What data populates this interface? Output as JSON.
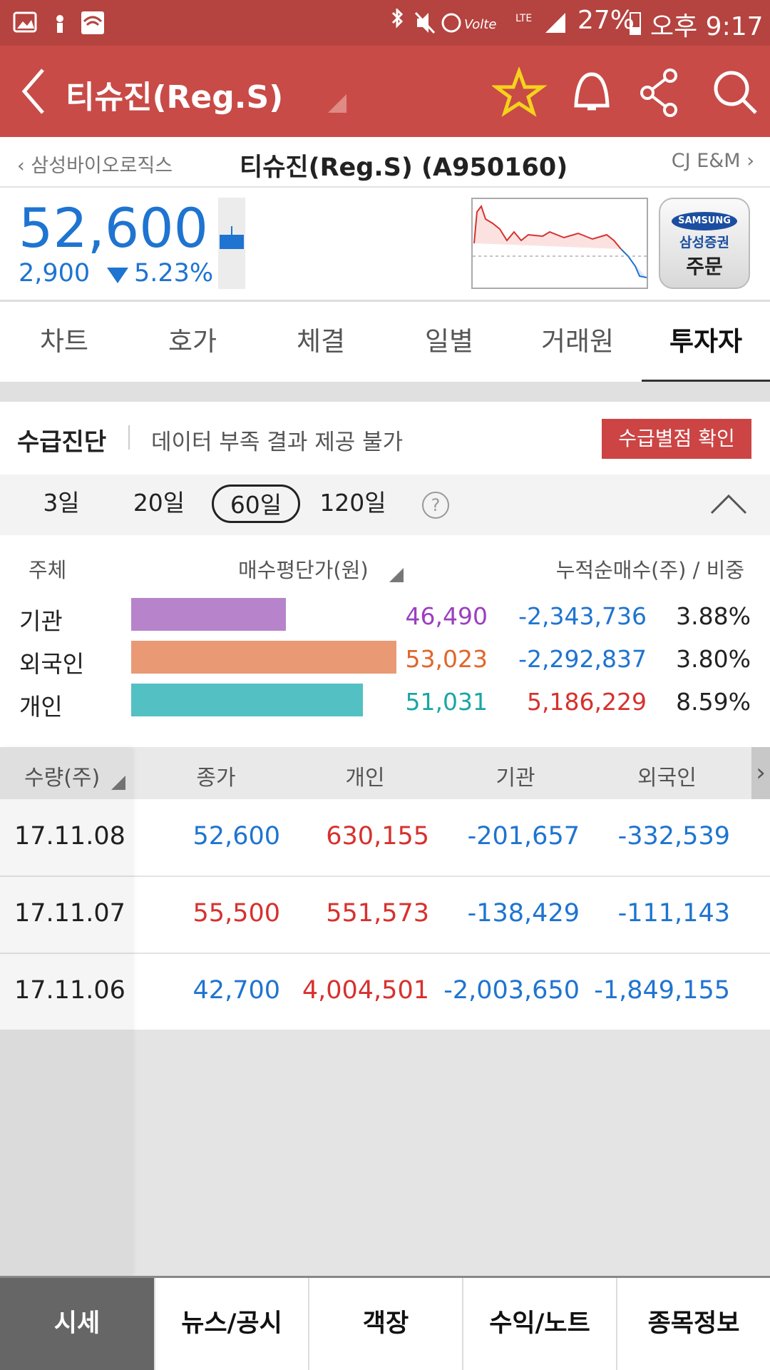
{
  "status_bar": {
    "battery": "27%",
    "time": "오후 9:17"
  },
  "header": {
    "title": "티슈진(Reg.S)"
  },
  "nav": {
    "prev": "삼성바이오로직스",
    "current": "티슈진(Reg.S) (A950160)",
    "next": "CJ E&M"
  },
  "quote": {
    "price": "52,600",
    "change": "2,900",
    "change_pct": "5.23%"
  },
  "order_button": {
    "brand": "SAMSUNG",
    "company": "삼성증권",
    "label": "주문"
  },
  "tabs": {
    "items": [
      "차트",
      "호가",
      "체결",
      "일별",
      "거래원",
      "투자자"
    ],
    "active": 5
  },
  "diagnosis": {
    "title": "수급진단",
    "message": "데이터 부족 결과 제공 불가",
    "button": "수급별점 확인"
  },
  "periods": {
    "items": [
      "3일",
      "20일",
      "60일",
      "120일"
    ],
    "selected": 2
  },
  "investor_summary": {
    "headers": [
      "주체",
      "매수평단가(원)",
      "누적순매수(주) / 비중"
    ],
    "rows": [
      {
        "name": "기관",
        "avg_price": {
          "value": 46490,
          "label": "46,490"
        },
        "net": "-2,343,736",
        "weight": "3.88%",
        "bar_color": "#b784cc",
        "price_color": "#9b3fbf"
      },
      {
        "name": "외국인",
        "avg_price": {
          "value": 53023,
          "label": "53,023"
        },
        "net": "-2,292,837",
        "weight": "3.80%",
        "bar_color": "#e99a74",
        "price_color": "#e0662c"
      },
      {
        "name": "개인",
        "avg_price": {
          "value": 51031,
          "label": "51,031"
        },
        "net": "5,186,229",
        "weight": "8.59%",
        "bar_color": "#53c0c4",
        "price_color": "#1aa6a6"
      }
    ]
  },
  "daily_table": {
    "headers": [
      "수량(주)",
      "종가",
      "개인",
      "기관",
      "외국인"
    ],
    "rows": [
      {
        "date": "17.11.08",
        "close": "52,600",
        "close_color": "#1e74d0",
        "individual": "630,155",
        "institution": "-201,657",
        "foreign": "-332,539"
      },
      {
        "date": "17.11.07",
        "close": "55,500",
        "close_color": "#d6312e",
        "individual": "551,573",
        "institution": "-138,429",
        "foreign": "-111,143"
      },
      {
        "date": "17.11.06",
        "close": "42,700",
        "close_color": "#1e74d0",
        "individual": "4,004,501",
        "institution": "-2,003,650",
        "foreign": "-1,849,155"
      }
    ]
  },
  "bottom_tabs": {
    "items": [
      "시세",
      "뉴스/공시",
      "객장",
      "수익/노트",
      "종목정보"
    ],
    "active": 0
  }
}
